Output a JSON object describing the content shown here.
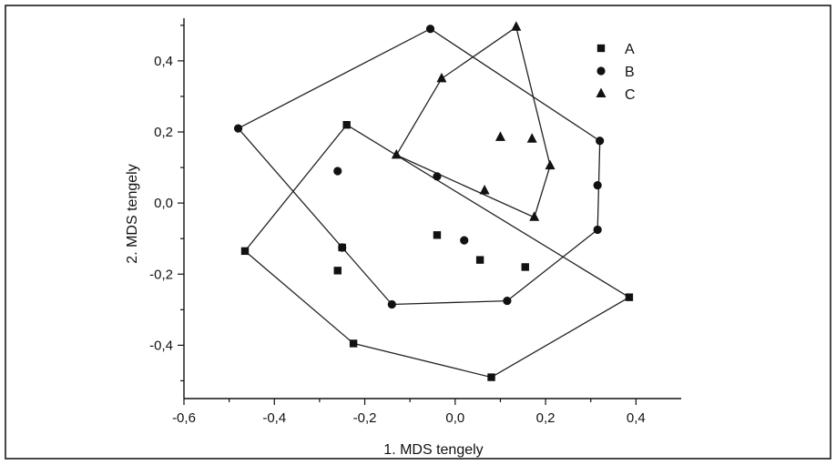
{
  "chart_data": {
    "type": "scatter",
    "xlabel": "1. MDS tengely",
    "ylabel": "2. MDS tengely",
    "xlim": [
      -0.6,
      0.5
    ],
    "ylim": [
      -0.55,
      0.52
    ],
    "xticks": [
      -0.6,
      -0.4,
      -0.2,
      0.0,
      0.2,
      0.4
    ],
    "yticks": [
      -0.4,
      -0.2,
      0.0,
      0.2,
      0.4
    ],
    "xtick_labels": [
      "-0,6",
      "-0,4",
      "-0,2",
      "0,0",
      "0,2",
      "0,4"
    ],
    "ytick_labels": [
      "-0,4",
      "-0,2",
      "0,0",
      "0,2",
      "0,4"
    ],
    "legend_position": "top-right",
    "grid": false,
    "series": [
      {
        "name": "A",
        "marker": "square",
        "points": [
          [
            -0.24,
            0.22
          ],
          [
            -0.25,
            -0.125
          ],
          [
            -0.26,
            -0.19
          ],
          [
            -0.465,
            -0.135
          ],
          [
            -0.225,
            -0.395
          ],
          [
            0.08,
            -0.49
          ],
          [
            0.385,
            -0.265
          ],
          [
            0.155,
            -0.18
          ],
          [
            0.055,
            -0.16
          ],
          [
            -0.04,
            -0.09
          ]
        ],
        "hull": [
          [
            -0.24,
            0.22
          ],
          [
            0.385,
            -0.265
          ],
          [
            0.08,
            -0.49
          ],
          [
            -0.225,
            -0.395
          ],
          [
            -0.465,
            -0.135
          ]
        ]
      },
      {
        "name": "B",
        "marker": "circle",
        "points": [
          [
            -0.055,
            0.49
          ],
          [
            0.32,
            0.175
          ],
          [
            0.315,
            0.05
          ],
          [
            0.315,
            -0.075
          ],
          [
            0.115,
            -0.275
          ],
          [
            -0.14,
            -0.285
          ],
          [
            -0.25,
            -0.125
          ],
          [
            -0.48,
            0.21
          ],
          [
            -0.26,
            0.09
          ],
          [
            -0.04,
            0.075
          ],
          [
            0.02,
            -0.105
          ]
        ],
        "hull": [
          [
            -0.055,
            0.49
          ],
          [
            0.32,
            0.175
          ],
          [
            0.315,
            -0.075
          ],
          [
            0.115,
            -0.275
          ],
          [
            -0.14,
            -0.285
          ],
          [
            -0.25,
            -0.125
          ],
          [
            -0.48,
            0.21
          ]
        ]
      },
      {
        "name": "C",
        "marker": "triangle",
        "points": [
          [
            0.135,
            0.495
          ],
          [
            -0.03,
            0.35
          ],
          [
            -0.13,
            0.135
          ],
          [
            0.21,
            0.105
          ],
          [
            0.175,
            -0.04
          ],
          [
            0.1,
            0.185
          ],
          [
            0.17,
            0.18
          ],
          [
            0.065,
            0.035
          ]
        ],
        "hull": [
          [
            0.135,
            0.495
          ],
          [
            0.21,
            0.105
          ],
          [
            0.175,
            -0.04
          ],
          [
            -0.13,
            0.135
          ],
          [
            -0.03,
            0.35
          ]
        ]
      }
    ]
  }
}
